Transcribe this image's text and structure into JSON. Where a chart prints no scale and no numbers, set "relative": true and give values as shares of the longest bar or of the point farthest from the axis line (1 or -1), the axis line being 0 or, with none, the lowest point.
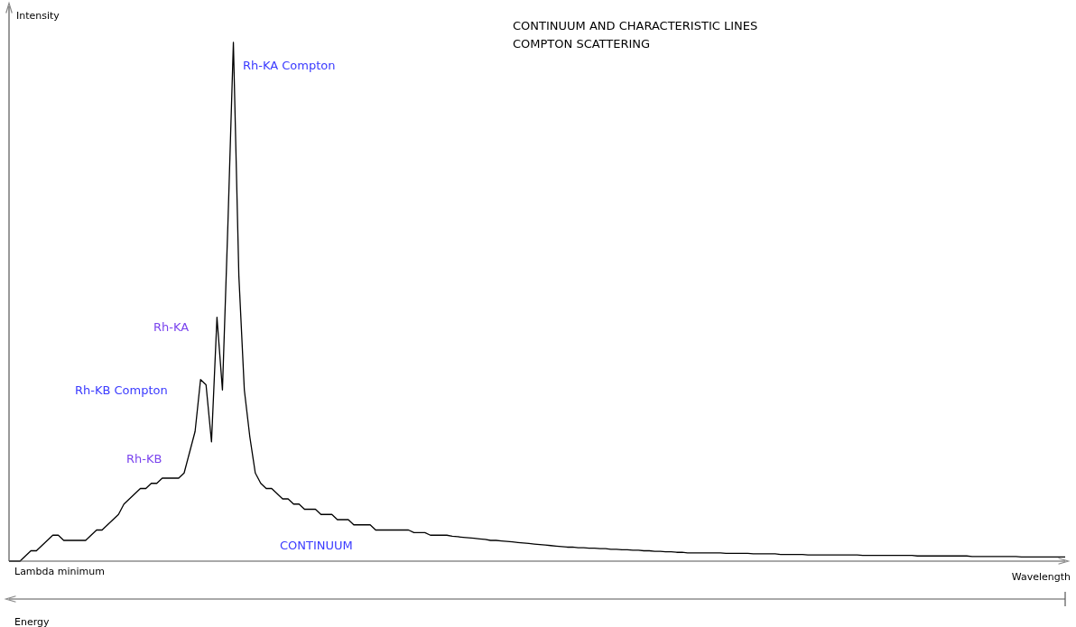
{
  "chart_data": {
    "type": "line",
    "relative": true,
    "title": "CONTINUUM AND CHARACTERISTIC LINES",
    "subtitle": "COMPTON SCATTERING",
    "xlabel": "Wavelength",
    "ylabel": "Intensity",
    "annotations": [
      "Rh-KA Compton",
      "Rh-KA",
      "Rh-KB Compton",
      "Rh-KB",
      "CONTINUUM",
      "Lambda minimum",
      "Energy"
    ],
    "marker": "none",
    "grid": false,
    "tick_labels": false,
    "categories": [
      null,
      null,
      null,
      null,
      null,
      null,
      null,
      null,
      null,
      null,
      null,
      null,
      null,
      null,
      null,
      null,
      null,
      null,
      null,
      null,
      null,
      null,
      null,
      null,
      null,
      null,
      null,
      null,
      null,
      null,
      null,
      null,
      null,
      null,
      null,
      null,
      null,
      null,
      null,
      null,
      null,
      null,
      null,
      null,
      null,
      null,
      null,
      null,
      null,
      null,
      null,
      null,
      null,
      null,
      null,
      null,
      null,
      null,
      null,
      null,
      null,
      null,
      null,
      null,
      null,
      null,
      null,
      null,
      null,
      null,
      null,
      null,
      null,
      null,
      null,
      null,
      null,
      null,
      null,
      null,
      null,
      null,
      null,
      null,
      null,
      null,
      null,
      null,
      null,
      null,
      null,
      null,
      null,
      null,
      null,
      null,
      null,
      null,
      null,
      null,
      null,
      null,
      null,
      null,
      null,
      null,
      null,
      null,
      null,
      null,
      null,
      null,
      null,
      null,
      null,
      null,
      null,
      null,
      null,
      null,
      null,
      null,
      null,
      null,
      null,
      null,
      null,
      null,
      null,
      null,
      null,
      null,
      null,
      null,
      null,
      null,
      null,
      null,
      null,
      null,
      null,
      null,
      null,
      null,
      null,
      null,
      null,
      null,
      null,
      null,
      null,
      null,
      null,
      null,
      null,
      null,
      null,
      null,
      null,
      null,
      null,
      null,
      null,
      null,
      null,
      null,
      null,
      null,
      null,
      null,
      null,
      null,
      null,
      null,
      null,
      null,
      null,
      null,
      null,
      null,
      null,
      null,
      null,
      null,
      null,
      null,
      null,
      null,
      null,
      null,
      null,
      null,
      null,
      null
    ],
    "series": [
      {
        "color": "#000000",
        "values": [
          0,
          0,
          0,
          0.01,
          0.02,
          0.02,
          0.03,
          0.04,
          0.05,
          0.05,
          0.04,
          0.04,
          0.04,
          0.04,
          0.04,
          0.05,
          0.06,
          0.06,
          0.07,
          0.08,
          0.09,
          0.11,
          0.12,
          0.13,
          0.14,
          0.14,
          0.15,
          0.15,
          0.16,
          0.16,
          0.16,
          0.16,
          0.17,
          0.21,
          0.25,
          0.35,
          0.34,
          0.23,
          0.47,
          0.33,
          0.65,
          1.0,
          0.55,
          0.33,
          0.24,
          0.17,
          0.15,
          0.14,
          0.14,
          0.13,
          0.12,
          0.12,
          0.11,
          0.11,
          0.1,
          0.1,
          0.1,
          0.09,
          0.09,
          0.09,
          0.08,
          0.08,
          0.08,
          0.07,
          0.07,
          0.07,
          0.07,
          0.06,
          0.06,
          0.06,
          0.06,
          0.06,
          0.06,
          0.06,
          0.055,
          0.055,
          0.055,
          0.05,
          0.05,
          0.05,
          0.05,
          0.048,
          0.047,
          0.046,
          0.045,
          0.044,
          0.043,
          0.042,
          0.04,
          0.04,
          0.039,
          0.038,
          0.037,
          0.036,
          0.035,
          0.034,
          0.033,
          0.032,
          0.031,
          0.03,
          0.029,
          0.028,
          0.027,
          0.027,
          0.026,
          0.026,
          0.025,
          0.025,
          0.024,
          0.024,
          0.023,
          0.023,
          0.022,
          0.022,
          0.021,
          0.021,
          0.02,
          0.02,
          0.019,
          0.019,
          0.018,
          0.018,
          0.017,
          0.017,
          0.016,
          0.016,
          0.016,
          0.016,
          0.016,
          0.016,
          0.016,
          0.015,
          0.015,
          0.015,
          0.015,
          0.015,
          0.014,
          0.014,
          0.014,
          0.014,
          0.014,
          0.013,
          0.013,
          0.013,
          0.013,
          0.013,
          0.012,
          0.012,
          0.012,
          0.012,
          0.012,
          0.012,
          0.012,
          0.012,
          0.012,
          0.012,
          0.011,
          0.011,
          0.011,
          0.011,
          0.011,
          0.011,
          0.011,
          0.011,
          0.011,
          0.011,
          0.01,
          0.01,
          0.01,
          0.01,
          0.01,
          0.01,
          0.01,
          0.01,
          0.01,
          0.01,
          0.009,
          0.009,
          0.009,
          0.009,
          0.009,
          0.009,
          0.009,
          0.009,
          0.009,
          0.008,
          0.008,
          0.008,
          0.008,
          0.008,
          0.008,
          0.008,
          0.008,
          0.008
        ]
      }
    ]
  }
}
